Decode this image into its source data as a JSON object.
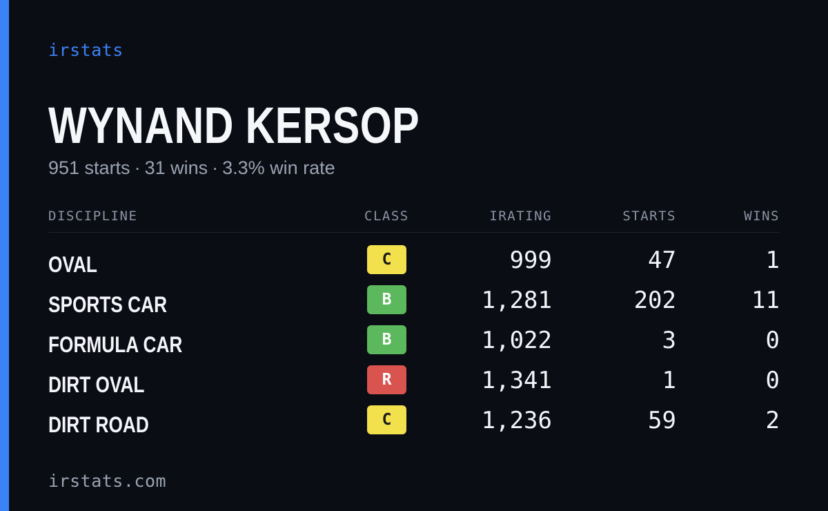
{
  "brand": "irstats",
  "driver": {
    "name": "WYNAND KERSOP",
    "starts_text": "951 starts",
    "wins_text": "31 wins",
    "win_rate_text": "3.3% win rate",
    "separator": "·"
  },
  "colors": {
    "accent": "#3b82f6",
    "background": "#0b0d14",
    "class_C": "#f2e14c",
    "class_B": "#5cb85c",
    "class_R": "#d9534f"
  },
  "table": {
    "headers": {
      "discipline": "DISCIPLINE",
      "class": "CLASS",
      "irating": "IRATING",
      "starts": "STARTS",
      "wins": "WINS"
    },
    "rows": [
      {
        "discipline": "OVAL",
        "class": "C",
        "irating": "999",
        "starts": "47",
        "wins": "1"
      },
      {
        "discipline": "SPORTS CAR",
        "class": "B",
        "irating": "1,281",
        "starts": "202",
        "wins": "11"
      },
      {
        "discipline": "FORMULA CAR",
        "class": "B",
        "irating": "1,022",
        "starts": "3",
        "wins": "0"
      },
      {
        "discipline": "DIRT OVAL",
        "class": "R",
        "irating": "1,341",
        "starts": "1",
        "wins": "0"
      },
      {
        "discipline": "DIRT ROAD",
        "class": "C",
        "irating": "1,236",
        "starts": "59",
        "wins": "2"
      }
    ]
  },
  "footer": {
    "domain": "irstats.com"
  }
}
